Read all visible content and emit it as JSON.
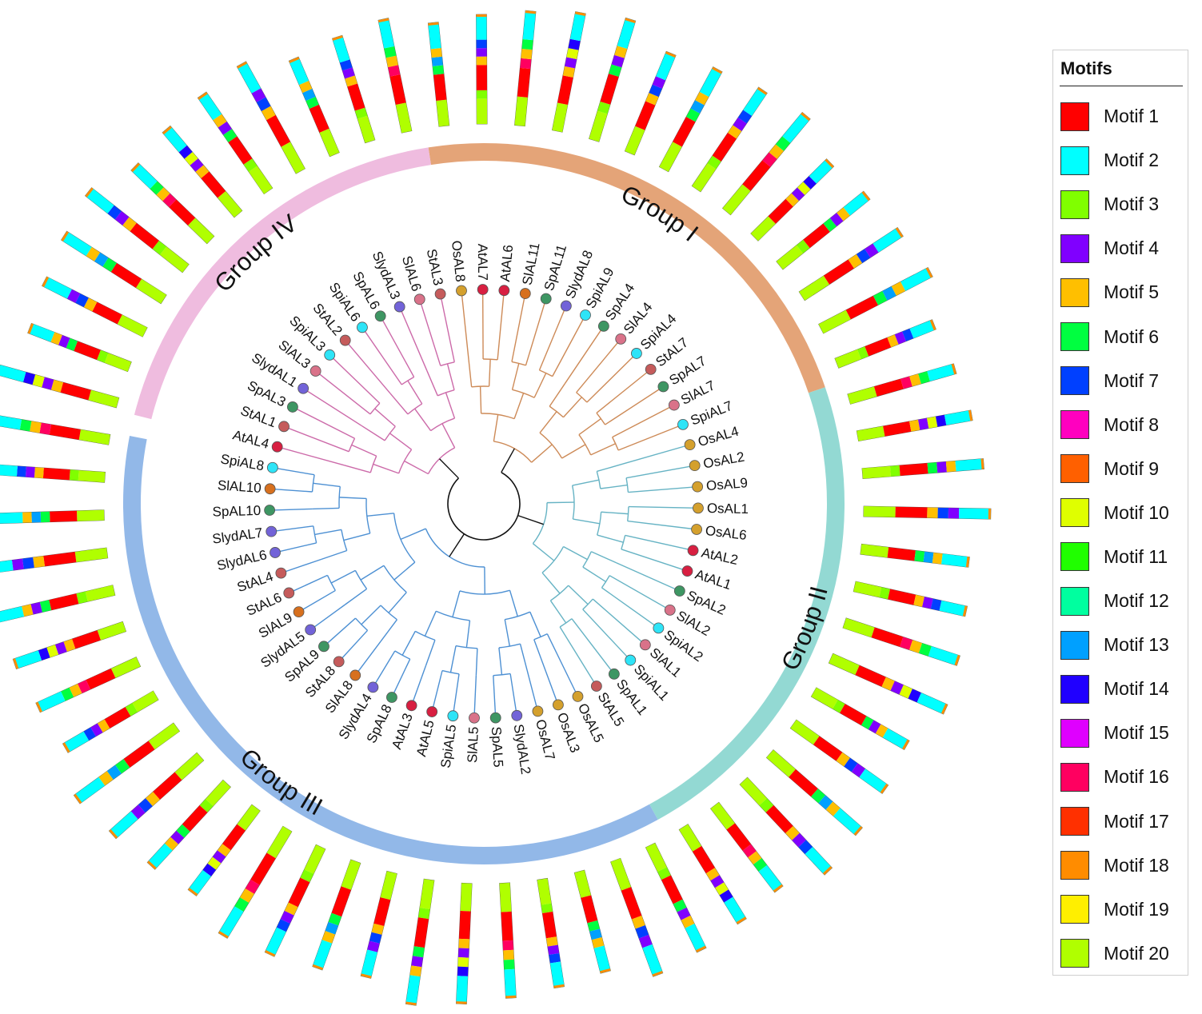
{
  "groups": [
    {
      "label": "Group I",
      "color": "#e4a478",
      "label_color": "#111111"
    },
    {
      "label": "Group II",
      "color": "#93d9d3",
      "label_color": "#111111"
    },
    {
      "label": "Group III",
      "color": "#92b8e8",
      "label_color": "#111111"
    },
    {
      "label": "Group IV",
      "color": "#efbcdf",
      "label_color": "#111111"
    }
  ],
  "branch_colors": {
    "Group I": "#cd8a57",
    "Group II": "#66b3c4",
    "Group III": "#4d90d3",
    "Group IV": "#cc6aa9",
    "root": "#111111"
  },
  "species_colors": {
    "At": "#d81f41",
    "Os": "#d4a02d",
    "Sl": "#d97289",
    "Slyd": "#7263d8",
    "Sp": "#3e9663",
    "Spi": "#2ee4f7",
    "SlO": "#d7701e",
    "St": "#c55b5b"
  },
  "leaves": [
    {
      "name": "OsAL8",
      "group": "Group I",
      "species": "Os"
    },
    {
      "name": "AtAL7",
      "group": "Group I",
      "species": "At"
    },
    {
      "name": "AtAL6",
      "group": "Group I",
      "species": "At"
    },
    {
      "name": "SlAL11",
      "group": "Group I",
      "species": "SlO"
    },
    {
      "name": "SpAL11",
      "group": "Group I",
      "species": "Sp"
    },
    {
      "name": "SlydAL8",
      "group": "Group I",
      "species": "Slyd"
    },
    {
      "name": "SpiAL9",
      "group": "Group I",
      "species": "Spi"
    },
    {
      "name": "SpAL4",
      "group": "Group I",
      "species": "Sp"
    },
    {
      "name": "SlAL4",
      "group": "Group I",
      "species": "Sl"
    },
    {
      "name": "SpiAL4",
      "group": "Group I",
      "species": "Spi"
    },
    {
      "name": "StAL7",
      "group": "Group I",
      "species": "St"
    },
    {
      "name": "SpAL7",
      "group": "Group I",
      "species": "Sp"
    },
    {
      "name": "SlAL7",
      "group": "Group I",
      "species": "Sl"
    },
    {
      "name": "SpiAL7",
      "group": "Group I",
      "species": "Spi"
    },
    {
      "name": "OsAL4",
      "group": "Group II",
      "species": "Os"
    },
    {
      "name": "OsAL2",
      "group": "Group II",
      "species": "Os"
    },
    {
      "name": "OsAL9",
      "group": "Group II",
      "species": "Os"
    },
    {
      "name": "OsAL1",
      "group": "Group II",
      "species": "Os"
    },
    {
      "name": "OsAL6",
      "group": "Group II",
      "species": "Os"
    },
    {
      "name": "AtAL2",
      "group": "Group II",
      "species": "At"
    },
    {
      "name": "AtAL1",
      "group": "Group II",
      "species": "At"
    },
    {
      "name": "SpAL2",
      "group": "Group II",
      "species": "Sp"
    },
    {
      "name": "SlAL2",
      "group": "Group II",
      "species": "Sl"
    },
    {
      "name": "SpiAL2",
      "group": "Group II",
      "species": "Spi"
    },
    {
      "name": "SlAL1",
      "group": "Group II",
      "species": "Sl"
    },
    {
      "name": "SpiAL1",
      "group": "Group II",
      "species": "Spi"
    },
    {
      "name": "SpAL1",
      "group": "Group II",
      "species": "Sp"
    },
    {
      "name": "StAL5",
      "group": "Group II",
      "species": "St"
    },
    {
      "name": "OsAL5",
      "group": "Group III",
      "species": "Os"
    },
    {
      "name": "OsAL3",
      "group": "Group III",
      "species": "Os"
    },
    {
      "name": "OsAL7",
      "group": "Group III",
      "species": "Os"
    },
    {
      "name": "SlydAL2",
      "group": "Group III",
      "species": "Slyd"
    },
    {
      "name": "SpAL5",
      "group": "Group III",
      "species": "Sp"
    },
    {
      "name": "SlAL5",
      "group": "Group III",
      "species": "Sl"
    },
    {
      "name": "SpiAL5",
      "group": "Group III",
      "species": "Spi"
    },
    {
      "name": "AtAL5",
      "group": "Group III",
      "species": "At"
    },
    {
      "name": "AtAL3",
      "group": "Group III",
      "species": "At"
    },
    {
      "name": "SpAL8",
      "group": "Group III",
      "species": "Sp"
    },
    {
      "name": "SlydAL4",
      "group": "Group III",
      "species": "Slyd"
    },
    {
      "name": "SlAL8",
      "group": "Group III",
      "species": "SlO"
    },
    {
      "name": "StAL8",
      "group": "Group III",
      "species": "St"
    },
    {
      "name": "SpAL9",
      "group": "Group III",
      "species": "Sp"
    },
    {
      "name": "SlydAL5",
      "group": "Group III",
      "species": "Slyd"
    },
    {
      "name": "SlAL9",
      "group": "Group III",
      "species": "SlO"
    },
    {
      "name": "StAL6",
      "group": "Group III",
      "species": "St"
    },
    {
      "name": "StAL4",
      "group": "Group III",
      "species": "St"
    },
    {
      "name": "SlydAL6",
      "group": "Group III",
      "species": "Slyd"
    },
    {
      "name": "SlydAL7",
      "group": "Group III",
      "species": "Slyd"
    },
    {
      "name": "SpAL10",
      "group": "Group III",
      "species": "Sp"
    },
    {
      "name": "SlAL10",
      "group": "Group III",
      "species": "SlO"
    },
    {
      "name": "SpiAL8",
      "group": "Group III",
      "species": "Spi"
    },
    {
      "name": "AtAL4",
      "group": "Group IV",
      "species": "At"
    },
    {
      "name": "StAL1",
      "group": "Group IV",
      "species": "St"
    },
    {
      "name": "SpAL3",
      "group": "Group IV",
      "species": "Sp"
    },
    {
      "name": "SlydAL1",
      "group": "Group IV",
      "species": "Slyd"
    },
    {
      "name": "SlAL3",
      "group": "Group IV",
      "species": "Sl"
    },
    {
      "name": "SpiAL3",
      "group": "Group IV",
      "species": "Spi"
    },
    {
      "name": "StAL2",
      "group": "Group IV",
      "species": "St"
    },
    {
      "name": "SpiAL6",
      "group": "Group IV",
      "species": "Spi"
    },
    {
      "name": "SpAL6",
      "group": "Group IV",
      "species": "Sp"
    },
    {
      "name": "SlydAL3",
      "group": "Group IV",
      "species": "Slyd"
    },
    {
      "name": "SlAL6",
      "group": "Group IV",
      "species": "Sl"
    },
    {
      "name": "StAL3",
      "group": "Group IV",
      "species": "St"
    }
  ],
  "motif_patterns": [
    [
      20,
      1,
      6,
      13,
      5,
      2
    ],
    [
      20,
      3,
      1,
      5,
      4,
      7,
      2
    ],
    [
      20,
      1,
      16,
      5,
      6,
      2
    ],
    [
      20,
      1,
      5,
      4,
      10,
      14,
      2
    ],
    [
      20,
      3,
      1,
      6,
      4,
      5,
      2
    ],
    [
      20,
      1,
      5,
      7,
      4,
      2
    ]
  ],
  "legend": {
    "title": "Motifs",
    "items": [
      {
        "label": "Motif 1",
        "color": "#ff0000"
      },
      {
        "label": "Motif 2",
        "color": "#00ffff"
      },
      {
        "label": "Motif 3",
        "color": "#80ff00"
      },
      {
        "label": "Motif 4",
        "color": "#8000ff"
      },
      {
        "label": "Motif 5",
        "color": "#ffbf00"
      },
      {
        "label": "Motif 6",
        "color": "#00ff40"
      },
      {
        "label": "Motif 7",
        "color": "#0040ff"
      },
      {
        "label": "Motif 8",
        "color": "#ff00bf"
      },
      {
        "label": "Motif 9",
        "color": "#ff6000"
      },
      {
        "label": "Motif 10",
        "color": "#dfff00"
      },
      {
        "label": "Motif 11",
        "color": "#20ff00"
      },
      {
        "label": "Motif 12",
        "color": "#00ff9f"
      },
      {
        "label": "Motif 13",
        "color": "#00a0ff"
      },
      {
        "label": "Motif 14",
        "color": "#2000ff"
      },
      {
        "label": "Motif 15",
        "color": "#df00ff"
      },
      {
        "label": "Motif 16",
        "color": "#ff0060"
      },
      {
        "label": "Motif 17",
        "color": "#ff3000"
      },
      {
        "label": "Motif 18",
        "color": "#ff8c00"
      },
      {
        "label": "Motif 19",
        "color": "#ffef00"
      },
      {
        "label": "Motif 20",
        "color": "#b0ff00"
      }
    ]
  }
}
